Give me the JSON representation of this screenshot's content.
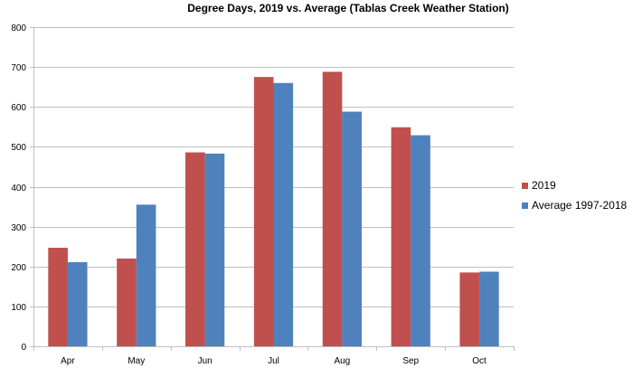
{
  "chart_data": {
    "type": "bar",
    "title": "Degree Days, 2019 vs. Average (Tablas Creek Weather Station)",
    "xlabel": "",
    "ylabel": "",
    "ylim": [
      0,
      800
    ],
    "yticks": [
      0,
      100,
      200,
      300,
      400,
      500,
      600,
      700,
      800
    ],
    "grid": true,
    "legend_position": "right",
    "categories": [
      "Apr",
      "May",
      "Jun",
      "Jul",
      "Aug",
      "Sep",
      "Oct"
    ],
    "series": [
      {
        "name": "2019",
        "color": "#C0504D",
        "values": [
          247,
          220,
          486,
          675,
          688,
          549,
          185
        ]
      },
      {
        "name": "Average 1997-2018",
        "color": "#4F81BD",
        "values": [
          211,
          355,
          483,
          660,
          588,
          529,
          187
        ]
      }
    ]
  },
  "legend": {
    "items": [
      {
        "label": "2019",
        "color": "#C0504D"
      },
      {
        "label": "Average 1997-2018",
        "color": "#4F81BD"
      }
    ]
  }
}
